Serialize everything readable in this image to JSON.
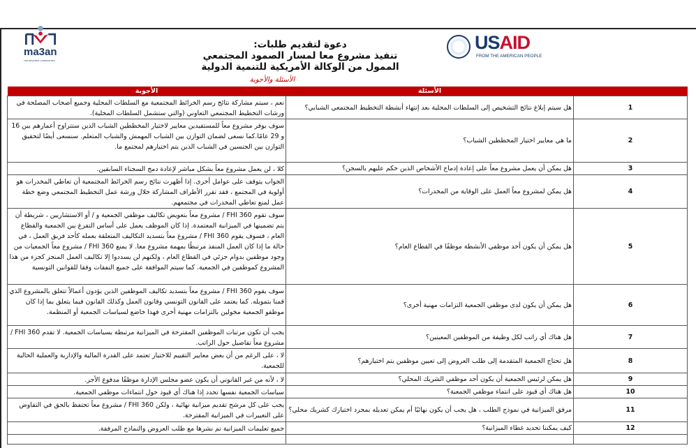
{
  "header": {
    "title_lines": [
      "دعوة لتقديم طلبات:",
      "تنفيذ مشروع معا لمسار الصمود المجتمعي",
      "الممول من الوكالة الأمريكية للتنمية الدولية"
    ],
    "subtitle": "الأسئلة والأجوبة",
    "logo_left": {
      "name": "ma3an",
      "tagline": "FOR RESILIENT COMMUNITIES"
    },
    "logo_right": {
      "name": "USAID",
      "tagline": "FROM THE AMERICAN PEOPLE"
    }
  },
  "table": {
    "header_color": "#c00000",
    "columns": {
      "questions": "الأسئلة",
      "answers": "الأجوبة"
    },
    "rows": [
      {
        "num": "1",
        "q": "هل سيتم إبلاغ نتائج التشخيص إلى السلطات المحلية بعد إنتهاء أنشطة التخطيط المجتمعي الشبابي؟",
        "a": "نعم ، سيتم مشاركة نتائج رسم الخرائط المجتمعية مع السلطات المحلية وجميع أصحاب المصلحة في ورشات التخطيط المجتمعي التعاوني (والتي ستشمل السلطات المحلية)."
      },
      {
        "num": "2",
        "q": "ما هي معايير اختيار المخططين الشباب؟",
        "a": "سوف يوفر مشروع معاً للمستفيدين معايير لاختيار المخططين الشباب  الذين ستتراوح أعمارهم بين 16 و 29 عامًا.كما نسعى لضمان التوازن بين الشباب المهمش والشباب المتعلم. سنسعى أيضًا لتحقيق التوازن بين الجنسين في الشباب الذين يتم اختيارهم لمجتمع ما."
      },
      {
        "num": "3",
        "q": "هل يمكن أن يعمل  مشروع معاً على إعادة إدماج الأشخاص الذين حكم عليهم بالسجن؟",
        "a": "كلا ، لن يعمل مشروع معاً بشكل مباشر لإعادة دمج السجناء السابقين."
      },
      {
        "num": "4",
        "q": "هل يمكن لمشروع معاً العمل على الوقاية من المخدرات؟",
        "a": "الجواب يتوقف على عوامل أخرى. إذا أظهرت نتائج رسم الخرائط المجتمعية  أن تعاطي المخدرات هو أولوية في المجتمع ، فقد تقرر الأطراف المشاركة خلال ورشة عمل التخطيط المجتمعي وضع خطة عمل لمنع تعاطي المخدرات في مجتمعهم."
      },
      {
        "num": "5",
        "q": "هل يمكن أن يكون أحد موظفي الأنشطة موظفًا في القطاع العام؟",
        "a": "سوف تقوم FHI 360 / مشروع معاً بتعويض تكاليف موظفي الجمعية و / أو الاستشاريين ، شريطة أن يتم تضمينها في الميزانية المعتمدة. إذا كان الموظف يعمل على أساس التفرغ بين الجمعية والقطاع العام ، فسوف يقوم FHI 360 / مشروع معاً بتسديد التكاليف المتعلقة بعمله كأحد فريق العمل ، في حالة ما إذا كان العمل المنفذ مرتبطًا بمهمة مشروع معا. لا يمنع FHI 360 / مشروع معاً الجمعيات من وجود موظفين بدوام جزئي في القطاع العام ، ولكنهم لن يسددوا إلا تكاليف العمل المنجز كجزء من هذا المشروع كموظفين في الجمعية. كما سيتم الموافقة على جميع النفقات وفقا للقوانين التونسية"
      },
      {
        "num": "6",
        "q": "هل يمكن أن يكون لدى موظفي الجمعية التزامات مهنية أخرى؟",
        "a": "سوف يقوم FHI 360 / مشروع معاً بتسديد تكاليف الموظفين الذين يؤدون أعمالاً تتعلق بالمشروع الذي قمنا بتمويله. كما يعتمد على القانون التونسي وقانون العمل وكذلك القانون فيما يتعلق بما إذا كان موظفو الجمعية مخولين بالتزامات مهنية أخرى فهذا خاضع لسياسات الجمعية أو المنظمة."
      },
      {
        "num": "7",
        "q": "هل هناك أي راتب لكل وظيفة من الموظفين المعينين؟",
        "a": "يجب أن تكون مرتبات الموظفين المقترحة في الميزانية مرتبطة بسياسات الجمعية. لا تقدم FHI 360 / مشروع معاً تفاصيل حول الراتب."
      },
      {
        "num": "8",
        "q": "هل تحتاج الجمعية المتقدمة إلى طلب العروض إلى تعيين موظفين يتم اختيارهم؟",
        "a": "لا ، على الرغم من أن بعض معايير التقييم للاختيار تعتمد على القدرة المالية والإدارية والعملية الحالية للجمعية."
      },
      {
        "num": "9",
        "q": "هل يمكن لرئيس الجمعية أن يكون أحد موظفي الشريك المحلي؟",
        "a": "لا ، لأنه من غير القانوني أن يكون عضو مجلس الإدارة موظفًا مدفوع الأجر."
      },
      {
        "num": "10",
        "q": "هل هناك أي قيود على انتماء موظفي الجمعية؟",
        "a": "سياسات الجمعية نفسها تحدد إذا هناك أي قيود حول انتماءات موظفي الجمعية."
      },
      {
        "num": "11",
        "q": "مرفق الميزانية في نموذج الطلب ، هل يجب أن يكون نهائيًا أم يمكن تعديله بمجرد اختيارك كشريك محلي؟",
        "a": "يجب على كل مرشح تقديم ميزانية نهائية ، ولكن FHI 360 / مشروع معاً تحتفظ بالحق في التفاوض على التغييرات في الميزانية المقترحة."
      },
      {
        "num": "12",
        "q": "كيف يمكننا تحديد غطاء الميزانية؟",
        "a": "جميع تعليمات الميزانية  تم نشرها مع طلب العروض والنماذج المرفقة."
      }
    ]
  }
}
